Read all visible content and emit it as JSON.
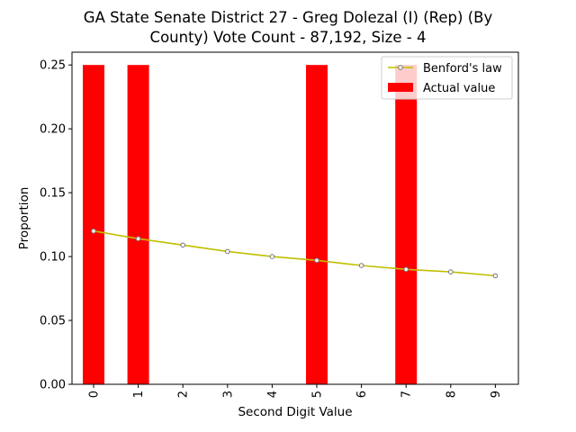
{
  "chart_data": {
    "type": "bar",
    "title_lines": [
      "GA State Senate District 27 - Greg Dolezal (I) (Rep) (By",
      "County) Vote Count - 87,192, Size - 4"
    ],
    "xlabel": "Second Digit Value",
    "ylabel": "Proportion",
    "categories": [
      "0",
      "1",
      "2",
      "3",
      "4",
      "5",
      "6",
      "7",
      "8",
      "9"
    ],
    "ylim": [
      0,
      0.26
    ],
    "yticks": [
      0.0,
      0.05,
      0.1,
      0.15,
      0.2,
      0.25
    ],
    "ytick_labels": [
      "0.00",
      "0.05",
      "0.10",
      "0.15",
      "0.20",
      "0.25"
    ],
    "grid": false,
    "legend_position": "top-right",
    "series": [
      {
        "name": "Benford's law",
        "kind": "line",
        "color": "#bfbf00",
        "values": [
          0.12,
          0.114,
          0.109,
          0.104,
          0.1,
          0.097,
          0.093,
          0.09,
          0.088,
          0.085
        ]
      },
      {
        "name": "Actual value",
        "kind": "bar",
        "color": "#ff0000",
        "values": [
          0.25,
          0.25,
          0,
          0,
          0,
          0.25,
          0,
          0.25,
          0,
          0
        ]
      }
    ]
  }
}
